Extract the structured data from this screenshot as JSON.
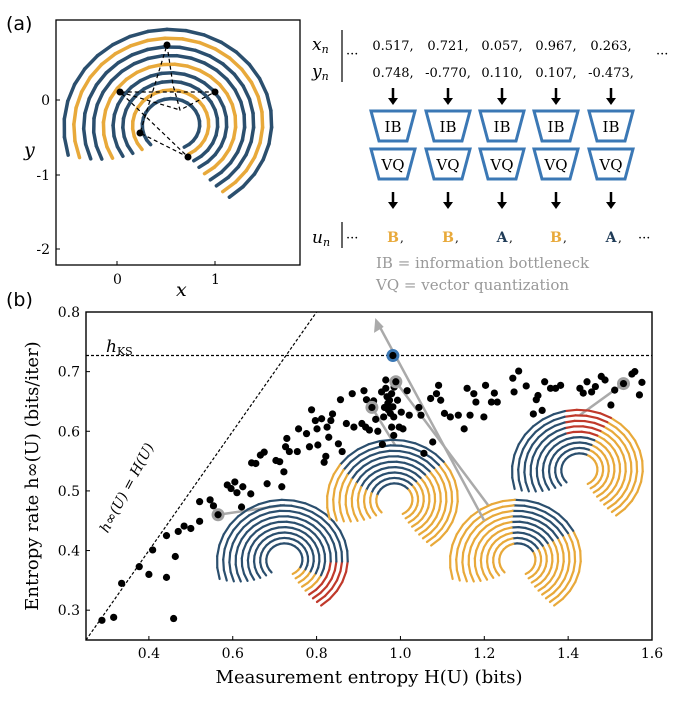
{
  "panel_a": {
    "label": "(a)",
    "xlabel": "x",
    "ylabel": "y",
    "xticks": [
      "0",
      "1"
    ],
    "yticks": [
      "0",
      "-1",
      "-2"
    ],
    "colors": {
      "blue": "#2b4f6e",
      "orange": "#e8a93a",
      "red": "#c0392b"
    },
    "pipeline": {
      "x_label": "x",
      "x_sub": "n",
      "y_label": "y",
      "y_sub": "n",
      "u_label": "u",
      "u_sub": "n",
      "ellipsis": "···",
      "x_values": [
        "0.517,",
        "0.721,",
        "0.057,",
        "0.967,",
        "0.263,"
      ],
      "y_values": [
        "0.748,",
        "-0.770,",
        "0.110,",
        "0.107,",
        "-0.473,"
      ],
      "ib_label": "IB",
      "vq_label": "VQ",
      "symbols": [
        {
          "text": "B",
          "color": "#e8a93a"
        },
        {
          "text": "B",
          "color": "#e8a93a"
        },
        {
          "text": "A",
          "color": "#1f3b57"
        },
        {
          "text": "B",
          "color": "#e8a93a"
        },
        {
          "text": "A",
          "color": "#1f3b57"
        }
      ],
      "legend_ib": "IB = information bottleneck",
      "legend_vq": "VQ = vector quantization",
      "box_color": "#3b78b5"
    }
  },
  "panel_b": {
    "label": "(b)",
    "hks_label": "h",
    "hks_sub": "KS",
    "diag_label": "h∞(U) = H(U)"
  },
  "chart_data": {
    "type": "scatter",
    "xlabel": "Measurement entropy H(U) (bits)",
    "ylabel": "Entropy rate h∞(U) (bits/iter)",
    "xlim": [
      0.25,
      1.6
    ],
    "ylim": [
      0.25,
      0.8
    ],
    "xticks": [
      "0.4",
      "0.6",
      "0.8",
      "1.0",
      "1.2",
      "1.4",
      "1.6"
    ],
    "yticks": [
      "0.3",
      "0.4",
      "0.5",
      "0.6",
      "0.7",
      "0.8"
    ],
    "hks": 0.727,
    "diagonal": "y = x",
    "grid": false,
    "point_color": "#000000",
    "highlight_blue": "#3b78b5",
    "highlight_grey": "#a0a0a0",
    "points": [
      [
        0.288,
        0.283
      ],
      [
        0.316,
        0.288
      ],
      [
        0.335,
        0.345
      ],
      [
        0.377,
        0.373
      ],
      [
        0.4,
        0.36
      ],
      [
        0.409,
        0.401
      ],
      [
        0.442,
        0.355
      ],
      [
        0.459,
        0.286
      ],
      [
        0.463,
        0.39
      ],
      [
        0.442,
        0.425
      ],
      [
        0.47,
        0.432
      ],
      [
        0.484,
        0.441
      ],
      [
        0.5,
        0.437
      ],
      [
        0.521,
        0.449
      ],
      [
        0.521,
        0.482
      ],
      [
        0.546,
        0.485
      ],
      [
        0.554,
        0.475
      ],
      [
        0.565,
        0.46
      ],
      [
        0.587,
        0.51
      ],
      [
        0.596,
        0.504
      ],
      [
        0.605,
        0.515
      ],
      [
        0.61,
        0.497
      ],
      [
        0.624,
        0.507
      ],
      [
        0.621,
        0.473
      ],
      [
        0.643,
        0.495
      ],
      [
        0.645,
        0.547
      ],
      [
        0.655,
        0.546
      ],
      [
        0.666,
        0.56
      ],
      [
        0.675,
        0.565
      ],
      [
        0.682,
        0.512
      ],
      [
        0.703,
        0.551
      ],
      [
        0.712,
        0.549
      ],
      [
        0.717,
        0.507
      ],
      [
        0.722,
        0.532
      ],
      [
        0.726,
        0.574
      ],
      [
        0.729,
        0.588
      ],
      [
        0.735,
        0.566
      ],
      [
        0.754,
        0.566
      ],
      [
        0.757,
        0.604
      ],
      [
        0.776,
        0.596
      ],
      [
        0.783,
        0.574
      ],
      [
        0.788,
        0.636
      ],
      [
        0.797,
        0.618
      ],
      [
        0.801,
        0.604
      ],
      [
        0.803,
        0.577
      ],
      [
        0.812,
        0.621
      ],
      [
        0.818,
        0.548
      ],
      [
        0.822,
        0.558
      ],
      [
        0.825,
        0.607
      ],
      [
        0.829,
        0.59
      ],
      [
        0.834,
        0.618
      ],
      [
        0.838,
        0.629
      ],
      [
        0.852,
        0.579
      ],
      [
        0.857,
        0.653
      ],
      [
        0.861,
        0.566
      ],
      [
        0.871,
        0.613
      ],
      [
        0.885,
        0.663
      ],
      [
        0.889,
        0.607
      ],
      [
        0.908,
        0.613
      ],
      [
        0.913,
        0.668
      ],
      [
        0.917,
        0.607
      ],
      [
        0.919,
        0.653
      ],
      [
        0.926,
        0.602
      ],
      [
        0.932,
        0.64
      ],
      [
        0.936,
        0.651
      ],
      [
        0.941,
        0.62
      ],
      [
        0.946,
        0.6
      ],
      [
        0.955,
        0.666
      ],
      [
        0.957,
        0.578
      ],
      [
        0.96,
        0.624
      ],
      [
        0.962,
        0.64
      ],
      [
        0.965,
        0.686
      ],
      [
        0.965,
        0.672
      ],
      [
        0.968,
        0.658
      ],
      [
        0.97,
        0.647
      ],
      [
        0.971,
        0.636
      ],
      [
        0.974,
        0.652
      ],
      [
        0.976,
        0.63
      ],
      [
        0.979,
        0.663
      ],
      [
        0.979,
        0.607
      ],
      [
        0.982,
        0.641
      ],
      [
        0.984,
        0.624
      ],
      [
        0.984,
        0.593
      ],
      [
        0.985,
        0.674
      ],
      [
        0.989,
        0.683
      ],
      [
        0.993,
        0.652
      ],
      [
        0.997,
        0.607
      ],
      [
        1.002,
        0.632
      ],
      [
        1.006,
        0.604
      ],
      [
        1.016,
        0.668
      ],
      [
        1.021,
        0.627
      ],
      [
        1.044,
        0.64
      ],
      [
        1.049,
        0.627
      ],
      [
        1.056,
        0.563
      ],
      [
        1.072,
        0.655
      ],
      [
        1.077,
        0.582
      ],
      [
        1.086,
        0.663
      ],
      [
        1.091,
        0.677
      ],
      [
        1.096,
        0.652
      ],
      [
        1.105,
        0.63
      ],
      [
        1.119,
        0.624
      ],
      [
        1.138,
        0.627
      ],
      [
        1.152,
        0.604
      ],
      [
        1.159,
        0.672
      ],
      [
        1.166,
        0.627
      ],
      [
        1.175,
        0.663
      ],
      [
        1.18,
        0.649
      ],
      [
        1.199,
        0.624
      ],
      [
        1.203,
        0.677
      ],
      [
        1.217,
        0.649
      ],
      [
        1.224,
        0.664
      ],
      [
        1.231,
        0.649
      ],
      [
        1.268,
        0.689
      ],
      [
        1.271,
        0.666
      ],
      [
        1.282,
        0.701
      ],
      [
        1.3,
        0.676
      ],
      [
        1.317,
        0.629
      ],
      [
        1.324,
        0.653
      ],
      [
        1.328,
        0.66
      ],
      [
        1.338,
        0.635
      ],
      [
        1.344,
        0.683
      ],
      [
        1.358,
        0.672
      ],
      [
        1.37,
        0.672
      ],
      [
        1.382,
        0.677
      ],
      [
        1.428,
        0.672
      ],
      [
        1.436,
        0.664
      ],
      [
        1.445,
        0.683
      ],
      [
        1.456,
        0.666
      ],
      [
        1.465,
        0.675
      ],
      [
        1.479,
        0.692
      ],
      [
        1.488,
        0.686
      ],
      [
        1.502,
        0.644
      ],
      [
        1.511,
        0.669
      ],
      [
        1.532,
        0.68
      ],
      [
        1.552,
        0.696
      ],
      [
        1.559,
        0.7
      ],
      [
        1.57,
        0.661
      ],
      [
        1.576,
        0.682
      ]
    ],
    "highlighted_grey": [
      [
        0.565,
        0.46
      ],
      [
        0.932,
        0.64
      ],
      [
        0.989,
        0.683
      ],
      [
        1.532,
        0.68
      ]
    ],
    "highlighted_blue": [
      0.982,
      0.727
    ]
  }
}
